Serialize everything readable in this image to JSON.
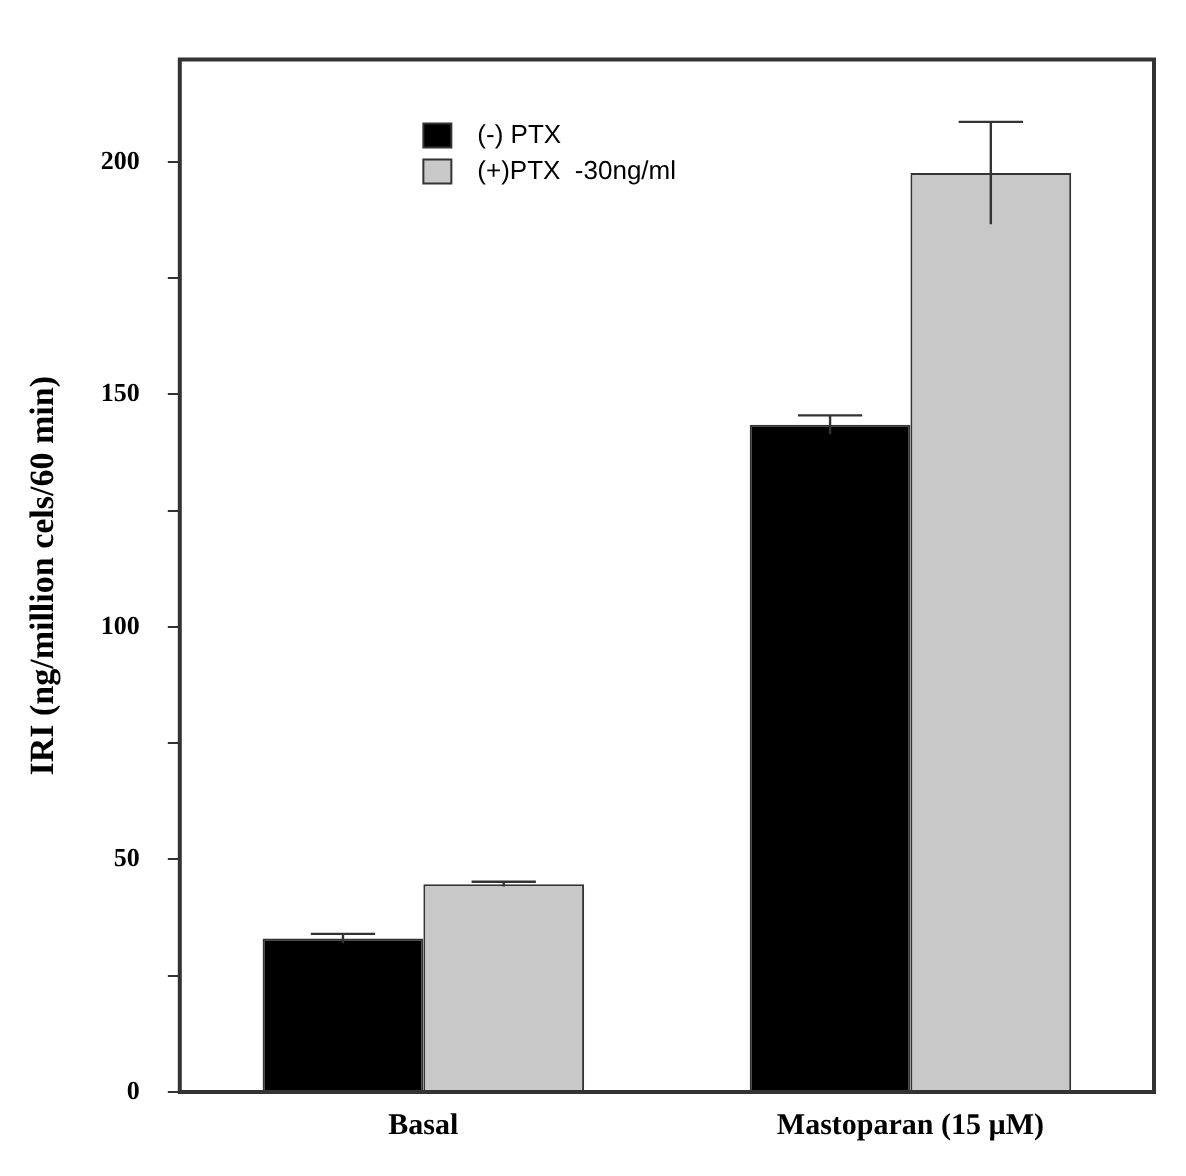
{
  "chart_data": {
    "type": "bar",
    "ylabel": "IRI (ng/million cels/60 min)",
    "categories": [
      "Basal",
      "Mastoparan (15 µM)"
    ],
    "series": [
      {
        "name": "(-) PTX",
        "color": "#000000",
        "values": [
          33,
          143.5
        ],
        "errors": [
          1,
          2
        ]
      },
      {
        "name": "(+)PTX  -30ng/ml",
        "color": "#c8c8c8",
        "values": [
          44.7,
          197.6
        ],
        "errors": [
          0.5,
          11
        ]
      }
    ],
    "ylim": [
      0,
      222
    ],
    "yticks": [
      0,
      {
        "value": 25,
        "label": null
      },
      50,
      {
        "value": 75,
        "label": null
      },
      100,
      {
        "value": 125,
        "label": null
      },
      150,
      {
        "value": 175,
        "label": null
      },
      200
    ],
    "grid": false,
    "legend": "top"
  }
}
